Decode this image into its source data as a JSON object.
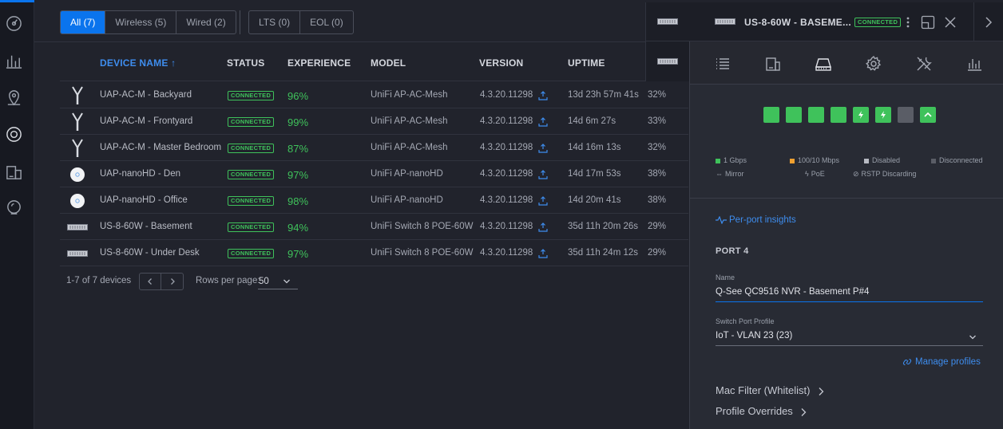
{
  "filters": {
    "type": [
      {
        "label": "All (7)",
        "active": true
      },
      {
        "label": "Wireless (5)",
        "active": false
      },
      {
        "label": "Wired (2)",
        "active": false
      }
    ],
    "release": [
      {
        "label": "LTS (0)"
      },
      {
        "label": "EOL (0)"
      }
    ]
  },
  "table": {
    "headers": {
      "name": "DEVICE NAME",
      "status": "STATUS",
      "experience": "EXPERIENCE",
      "model": "MODEL",
      "version": "VERSION",
      "uptime": "UPTIME"
    },
    "rows": [
      {
        "icon": "mesh-ap-icon",
        "name": "UAP-AC-M - Backyard",
        "status": "CONNECTED",
        "experience": "96%",
        "model": "UniFi AP-AC-Mesh",
        "version": "4.3.20.11298",
        "uptime": "13d 23h 57m 41s",
        "extra": "32%"
      },
      {
        "icon": "mesh-ap-icon",
        "name": "UAP-AC-M - Frontyard",
        "status": "CONNECTED",
        "experience": "99%",
        "model": "UniFi AP-AC-Mesh",
        "version": "4.3.20.11298",
        "uptime": "14d 6m 27s",
        "extra": "33%"
      },
      {
        "icon": "mesh-ap-icon",
        "name": "UAP-AC-M - Master Bedroom",
        "status": "CONNECTED",
        "experience": "87%",
        "model": "UniFi AP-AC-Mesh",
        "version": "4.3.20.11298",
        "uptime": "14d 16m 13s",
        "extra": "32%"
      },
      {
        "icon": "nanohd-ap-icon",
        "name": "UAP-nanoHD - Den",
        "status": "CONNECTED",
        "experience": "97%",
        "model": "UniFi AP-nanoHD",
        "version": "4.3.20.11298",
        "uptime": "14d 17m 53s",
        "extra": "38%"
      },
      {
        "icon": "nanohd-ap-icon",
        "name": "UAP-nanoHD - Office",
        "status": "CONNECTED",
        "experience": "98%",
        "model": "UniFi AP-nanoHD",
        "version": "4.3.20.11298",
        "uptime": "14d 20m 41s",
        "extra": "38%"
      },
      {
        "icon": "switch-icon",
        "name": "US-8-60W - Basement",
        "status": "CONNECTED",
        "experience": "94%",
        "model": "UniFi Switch 8 POE-60W",
        "version": "4.3.20.11298",
        "uptime": "35d 11h 20m 26s",
        "extra": "29%"
      },
      {
        "icon": "switch-icon",
        "name": "US-8-60W - Under Desk",
        "status": "CONNECTED",
        "experience": "97%",
        "model": "UniFi Switch 8 POE-60W",
        "version": "4.3.20.11298",
        "uptime": "35d 11h 24m 12s",
        "extra": "29%"
      }
    ]
  },
  "footer": {
    "count": "1-7 of 7 devices",
    "rows_per_page_label": "Rows per page:",
    "rows_per_page_value": "50"
  },
  "panel": {
    "title": "US-8-60W - BASEME...",
    "status": "CONNECTED",
    "tabs": [
      "list-icon",
      "devices-icon",
      "switch-ports-icon",
      "settings-icon",
      "tools-icon",
      "stats-icon"
    ],
    "ports": [
      {
        "state": "1gbps",
        "icon": ""
      },
      {
        "state": "1gbps",
        "icon": ""
      },
      {
        "state": "1gbps",
        "icon": ""
      },
      {
        "state": "1gbps",
        "icon": ""
      },
      {
        "state": "1gbps",
        "icon": "poe-icon"
      },
      {
        "state": "1gbps",
        "icon": "poe-icon"
      },
      {
        "state": "disabled",
        "icon": ""
      },
      {
        "state": "1gbps",
        "icon": "uplink-icon"
      }
    ],
    "legend": {
      "gbps": "1 Gbps",
      "fast": "100/10 Mbps",
      "disabled": "Disabled",
      "disconnected": "Disconnected",
      "mirror": "Mirror",
      "poe": "PoE",
      "rstp": "RSTP Discarding"
    },
    "insights_link": "Per-port insights",
    "port_title": "PORT 4",
    "name_label": "Name",
    "name_value": "Q-See QC9516 NVR - Basement P#4",
    "profile_label": "Switch Port Profile",
    "profile_value": "IoT - VLAN 23 (23)",
    "manage_link": "Manage profiles",
    "mac_filter": "Mac Filter (Whitelist)",
    "profile_overrides": "Profile Overrides"
  },
  "colors": {
    "accent": "#0a74ed",
    "connected": "#3fc25b",
    "gbps": "#3fc25b",
    "fast": "#f0a030",
    "disabled": "#5a5d66",
    "disconnected": "#5a5d66"
  }
}
